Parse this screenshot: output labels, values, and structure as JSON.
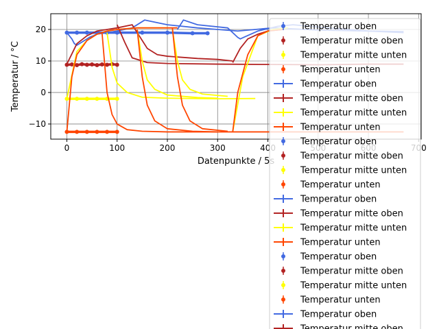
{
  "chart_data": {
    "type": "line",
    "title": "",
    "xlabel": "Datenpunkte / 5s",
    "ylabel": "Temperatur / °C",
    "xlim": [
      -32,
      705
    ],
    "ylim": [
      -14.8,
      25
    ],
    "x_ticks": [
      0,
      100,
      200,
      300,
      400,
      500,
      600,
      700
    ],
    "y_ticks": [
      -10,
      0,
      10,
      20
    ],
    "grid": true,
    "legend_position": "right, overflowing below the axes",
    "colors": {
      "Temperatur oben": "#4169e1",
      "Temperatur mitte oben": "#b22222",
      "Temperatur mitte unten": "#ffff00",
      "Temperatur unten": "#ff4500"
    },
    "legend": [
      {
        "label": "Temperatur oben",
        "series": "Temperatur oben",
        "marker": "errorbar-point"
      },
      {
        "label": "Temperatur mitte oben",
        "series": "Temperatur mitte oben",
        "marker": "errorbar-point"
      },
      {
        "label": "Temperatur mitte unten",
        "series": "Temperatur mitte unten",
        "marker": "errorbar-point"
      },
      {
        "label": "Temperatur unten",
        "series": "Temperatur unten",
        "marker": "errorbar-point"
      },
      {
        "label": "Temperatur oben",
        "series": "Temperatur oben",
        "marker": "errorbar-line"
      },
      {
        "label": "Temperatur mitte oben",
        "series": "Temperatur mitte oben",
        "marker": "errorbar-line"
      },
      {
        "label": "Temperatur mitte unten",
        "series": "Temperatur mitte unten",
        "marker": "errorbar-line"
      },
      {
        "label": "Temperatur unten",
        "series": "Temperatur unten",
        "marker": "errorbar-line"
      },
      {
        "label": "Temperatur oben",
        "series": "Temperatur oben",
        "marker": "errorbar-point"
      },
      {
        "label": "Temperatur mitte oben",
        "series": "Temperatur mitte oben",
        "marker": "errorbar-point"
      },
      {
        "label": "Temperatur mitte unten",
        "series": "Temperatur mitte unten",
        "marker": "errorbar-point"
      },
      {
        "label": "Temperatur unten",
        "series": "Temperatur unten",
        "marker": "errorbar-point"
      },
      {
        "label": "Temperatur oben",
        "series": "Temperatur oben",
        "marker": "errorbar-line"
      },
      {
        "label": "Temperatur mitte oben",
        "series": "Temperatur mitte oben",
        "marker": "errorbar-line"
      },
      {
        "label": "Temperatur mitte unten",
        "series": "Temperatur mitte unten",
        "marker": "errorbar-line"
      },
      {
        "label": "Temperatur unten",
        "series": "Temperatur unten",
        "marker": "errorbar-line"
      },
      {
        "label": "Temperatur oben",
        "series": "Temperatur oben",
        "marker": "errorbar-point"
      },
      {
        "label": "Temperatur mitte oben",
        "series": "Temperatur mitte oben",
        "marker": "errorbar-point"
      },
      {
        "label": "Temperatur mitte unten",
        "series": "Temperatur mitte unten",
        "marker": "errorbar-point"
      },
      {
        "label": "Temperatur unten",
        "series": "Temperatur unten",
        "marker": "errorbar-point"
      },
      {
        "label": "Temperatur oben",
        "series": "Temperatur oben",
        "marker": "errorbar-line"
      },
      {
        "label": "Temperatur mitte oben",
        "series": "Temperatur mitte oben",
        "marker": "errorbar-line"
      }
    ],
    "series": [
      {
        "name": "Temperatur oben",
        "style": "line",
        "x": [
          0,
          10,
          15,
          20,
          30,
          45,
          60,
          80,
          100,
          130,
          155,
          200,
          260,
          300,
          340,
          410,
          500,
          600,
          670
        ],
        "y": [
          19,
          17,
          15.5,
          15,
          16,
          17.5,
          18.5,
          19,
          19.5,
          20.5,
          23,
          21.5,
          20.5,
          20,
          19.5,
          20.5,
          19.8,
          19.5,
          19.3
        ]
      },
      {
        "name": "Temperatur oben",
        "style": "line",
        "x": [
          220,
          232,
          260,
          320,
          340,
          345,
          352,
          380,
          420,
          450,
          520,
          600,
          670
        ],
        "y": [
          20,
          23,
          21.5,
          20.5,
          17.5,
          17,
          17.5,
          19.5,
          21,
          21.5,
          20.5,
          19.5,
          19
        ],
        "x_start_label": "220"
      },
      {
        "name": "Temperatur oben",
        "style": "points",
        "x": [
          0,
          20,
          40,
          60,
          80,
          100,
          150,
          200,
          250,
          280
        ],
        "y": [
          19,
          19,
          19,
          19,
          19,
          19,
          19,
          19,
          18.8,
          18.8
        ]
      },
      {
        "name": "Temperatur mitte oben",
        "style": "points",
        "x": [
          0,
          10,
          20,
          30,
          40,
          50,
          60,
          70,
          80,
          90,
          100
        ],
        "y": [
          8.8,
          8.9,
          8.7,
          9,
          8.8,
          8.9,
          8.7,
          8.9,
          8.8,
          9,
          8.8
        ]
      },
      {
        "name": "Temperatur mitte oben",
        "style": "line",
        "x": [
          0,
          20,
          40,
          60,
          80,
          100,
          130,
          160,
          180,
          200,
          260,
          300,
          330
        ],
        "y": [
          9,
          15.5,
          18,
          19.5,
          20,
          20.5,
          21.5,
          14,
          12,
          11.5,
          10.8,
          10.5,
          10
        ]
      },
      {
        "name": "Temperatur mitte oben",
        "style": "line",
        "x": [
          100,
          115,
          130,
          160,
          200,
          300,
          400,
          500,
          600,
          670
        ],
        "y": [
          21.5,
          16,
          11,
          9.5,
          9.2,
          9,
          8.9,
          8.8,
          9,
          9
        ]
      },
      {
        "name": "Temperatur mitte oben",
        "style": "line",
        "x": [
          330,
          345,
          360,
          380,
          400,
          430
        ],
        "y": [
          9.5,
          14,
          17,
          18.5,
          19.5,
          20
        ]
      },
      {
        "name": "Temperatur mitte unten",
        "style": "points",
        "x": [
          0,
          20,
          40,
          60,
          80,
          100
        ],
        "y": [
          -2,
          -2,
          -2,
          -2,
          -2,
          -2
        ]
      },
      {
        "name": "Temperatur mitte unten",
        "style": "line",
        "x": [
          0,
          20,
          40,
          60,
          80,
          100,
          140,
          200
        ],
        "y": [
          -2,
          13,
          16.5,
          18.5,
          19.5,
          20,
          20.5,
          20.5
        ]
      },
      {
        "name": "Temperatur mitte unten",
        "style": "line",
        "x": [
          80,
          90,
          100,
          120,
          150,
          200,
          300,
          375
        ],
        "y": [
          19,
          8,
          3,
          0,
          -1.5,
          -1.8,
          -2,
          -1.9
        ]
      },
      {
        "name": "Temperatur mitte unten",
        "style": "line",
        "x": [
          140,
          150,
          160,
          175,
          200,
          260,
          300
        ],
        "y": [
          20,
          10,
          4,
          1,
          -0.8,
          -1.6,
          -1.8
        ]
      },
      {
        "name": "Temperatur mitte unten",
        "style": "line",
        "x": [
          210,
          220,
          230,
          245,
          270,
          320
        ],
        "y": [
          20,
          10,
          4,
          1,
          -0.5,
          -1.2
        ]
      },
      {
        "name": "Temperatur mitte unten",
        "style": "line",
        "x": [
          330,
          350,
          380,
          410,
          440
        ],
        "y": [
          -12.5,
          5,
          18,
          20,
          20.5
        ]
      },
      {
        "name": "Temperatur unten",
        "style": "points",
        "x": [
          0,
          20,
          40,
          60,
          80,
          100
        ],
        "y": [
          -12.5,
          -12.5,
          -12.5,
          -12.5,
          -12.5,
          -12.5
        ]
      },
      {
        "name": "Temperatur unten",
        "style": "line",
        "x": [
          0,
          10,
          20,
          40,
          60,
          80,
          100,
          140,
          200,
          220
        ],
        "y": [
          -12.5,
          5,
          12,
          16.5,
          18.5,
          19.5,
          20,
          20.5,
          20.5,
          20.5
        ]
      },
      {
        "name": "Temperatur unten",
        "style": "line",
        "x": [
          70,
          80,
          90,
          100,
          120,
          150,
          200,
          300,
          400,
          500,
          600,
          670
        ],
        "y": [
          19,
          0,
          -7,
          -10,
          -11.8,
          -12.3,
          -12.5,
          -12.5,
          -12.5,
          -12.5,
          -12.5,
          -12.5
        ]
      },
      {
        "name": "Temperatur unten",
        "style": "line",
        "x": [
          140,
          150,
          160,
          175,
          200,
          250,
          300
        ],
        "y": [
          20,
          5,
          -4,
          -9,
          -11.5,
          -12.3,
          -12.5
        ]
      },
      {
        "name": "Temperatur unten",
        "style": "line",
        "x": [
          210,
          220,
          230,
          245,
          270,
          320
        ],
        "y": [
          20.5,
          5,
          -4,
          -9,
          -11.5,
          -12.3
        ]
      },
      {
        "name": "Temperatur unten",
        "style": "line",
        "x": [
          330,
          340,
          360,
          380,
          400,
          430
        ],
        "y": [
          -12.5,
          0,
          12,
          18,
          19.5,
          20
        ]
      }
    ]
  }
}
